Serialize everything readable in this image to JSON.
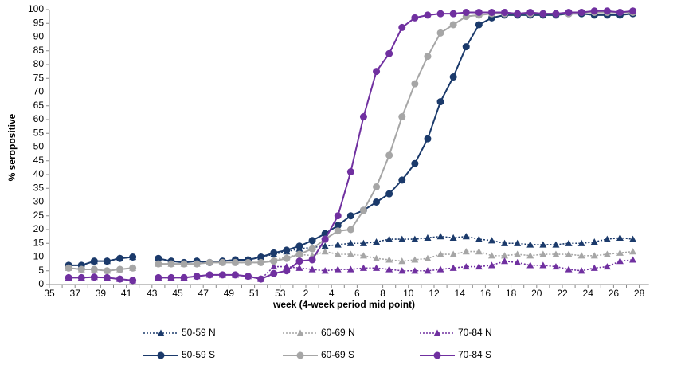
{
  "chart_data": {
    "type": "line",
    "xlabel": "week (4-week period mid point)",
    "ylabel": "% seropositive",
    "categories": [
      35,
      null,
      37,
      null,
      39,
      null,
      41,
      null,
      43,
      null,
      45,
      null,
      47,
      null,
      49,
      null,
      51,
      null,
      53,
      null,
      2,
      null,
      4,
      null,
      6,
      null,
      8,
      null,
      10,
      null,
      12,
      null,
      14,
      null,
      16,
      null,
      18,
      null,
      20,
      null,
      22,
      null,
      24,
      null,
      26,
      null,
      28
    ],
    "ylim": [
      0,
      100
    ],
    "yticks": [
      0,
      5,
      10,
      15,
      20,
      25,
      30,
      35,
      40,
      45,
      50,
      55,
      60,
      65,
      70,
      75,
      80,
      85,
      90,
      95,
      100
    ],
    "grid": false,
    "legend": "bottom",
    "series": [
      {
        "name": "50-59 N",
        "color": "#1b3a6b",
        "marker": "triangle",
        "linestyle": "dotted",
        "values": [
          null,
          7,
          7,
          8.5,
          8.5,
          9.5,
          10,
          null,
          9.5,
          8.5,
          8,
          8.5,
          8,
          8.5,
          9,
          9,
          10,
          11,
          12,
          13,
          13.5,
          14,
          14.5,
          15,
          15,
          15.5,
          16.5,
          16.5,
          16.5,
          17,
          17.5,
          17,
          17.5,
          16.5,
          16,
          15,
          15,
          14.5,
          14.5,
          14.5,
          15,
          15,
          15.5,
          16.5,
          17,
          16.5,
          null
        ]
      },
      {
        "name": "60-69 N",
        "color": "#a6a6a6",
        "marker": "triangle",
        "linestyle": "dotted",
        "values": [
          null,
          6,
          5.5,
          5.5,
          5,
          5.5,
          6,
          null,
          7.5,
          7.5,
          7.5,
          7.5,
          8,
          8,
          8,
          8,
          8,
          9,
          10,
          11,
          10.5,
          12,
          11,
          11,
          10.5,
          9.5,
          9,
          8.5,
          9,
          9.5,
          11,
          11,
          12,
          12,
          10.5,
          10.5,
          11,
          10.5,
          11,
          11,
          11,
          10.5,
          10.5,
          11,
          11.5,
          12,
          null
        ]
      },
      {
        "name": "70-84 N",
        "color": "#7030a0",
        "marker": "triangle",
        "linestyle": "dotted",
        "values": [
          null,
          2.5,
          2.5,
          2.7,
          2.5,
          2,
          1.5,
          null,
          2.5,
          2.5,
          2.5,
          3,
          3.5,
          3.5,
          3.5,
          3,
          2,
          6.5,
          6.5,
          6,
          5.5,
          5,
          5.5,
          5.5,
          6,
          6,
          5.5,
          5,
          5,
          5,
          5.5,
          6,
          6.5,
          6.5,
          7,
          8.5,
          8,
          7,
          7,
          6.5,
          5.5,
          5,
          6,
          6.5,
          8.5,
          9,
          null
        ]
      },
      {
        "name": "50-59 S",
        "color": "#1b3a6b",
        "marker": "circle",
        "linestyle": "solid",
        "values": [
          null,
          7,
          7,
          8.5,
          8.5,
          9.5,
          10,
          null,
          9.5,
          8.5,
          8,
          8.5,
          8,
          8.5,
          9,
          9,
          10,
          11.5,
          12.5,
          14,
          16,
          18.5,
          21.5,
          25,
          27,
          30,
          33,
          38,
          44,
          53,
          66.5,
          75.5,
          86.5,
          94.5,
          97,
          98,
          98,
          98,
          98,
          98,
          98.5,
          98.5,
          98,
          98,
          98,
          98.5,
          null
        ]
      },
      {
        "name": "60-69 S",
        "color": "#a6a6a6",
        "marker": "circle",
        "linestyle": "solid",
        "values": [
          null,
          6,
          5.5,
          5.5,
          5,
          5.5,
          6,
          null,
          7.5,
          7.5,
          7.5,
          7.5,
          8,
          8,
          8,
          8,
          8,
          8.5,
          9.5,
          11,
          13,
          16.5,
          19.5,
          20,
          27,
          35.5,
          47,
          61,
          73,
          83,
          91.5,
          94.5,
          97.5,
          98,
          98.5,
          98.5,
          98.5,
          98.5,
          98.5,
          98.5,
          98.5,
          99,
          99,
          99,
          99,
          99,
          null
        ]
      },
      {
        "name": "70-84 S",
        "color": "#7030a0",
        "marker": "circle",
        "linestyle": "solid",
        "values": [
          null,
          2.5,
          2.5,
          2.7,
          2.5,
          2,
          1.5,
          null,
          2.5,
          2.5,
          2.5,
          3,
          3.5,
          3.5,
          3.5,
          3,
          2,
          4,
          5,
          8.5,
          9,
          16.5,
          25,
          41,
          61,
          77.5,
          84,
          93.5,
          97,
          98,
          98.5,
          98.5,
          99,
          99,
          99,
          99,
          98.5,
          99,
          98.5,
          98.5,
          99,
          99,
          99.5,
          99.5,
          99,
          99.5,
          null
        ]
      }
    ]
  }
}
